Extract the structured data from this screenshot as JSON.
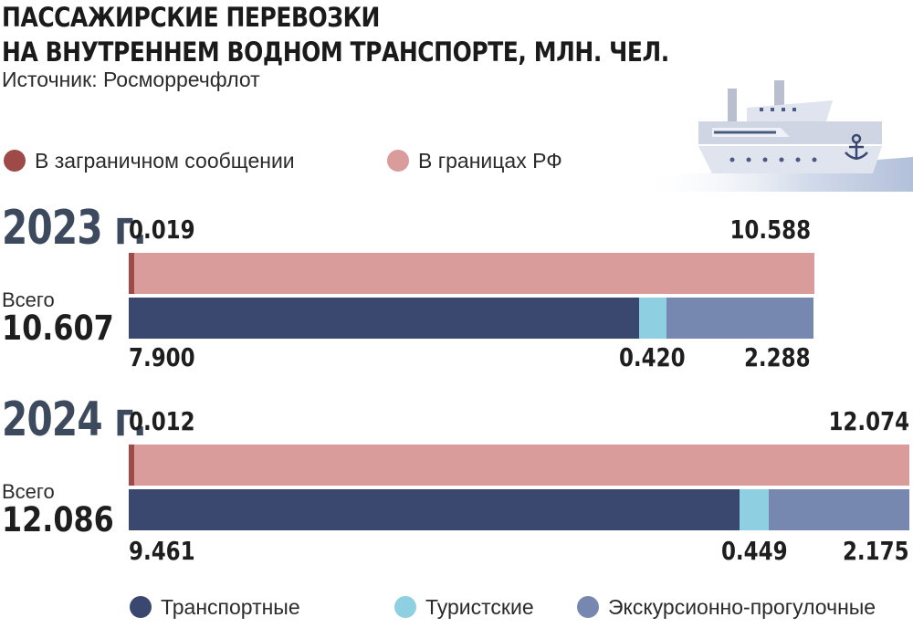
{
  "header": {
    "title_line1": "ПАССАЖИРСКИЕ ПЕРЕВОЗКИ",
    "title_line2": "НА ВНУТРЕННЕМ ВОДНОМ ТРАНСПОРТЕ, МЛН. ЧЕЛ.",
    "source": "Источник: Росморречфлот"
  },
  "colors": {
    "international": "#9e4a48",
    "domestic": "#d99c9b",
    "transport": "#3a4870",
    "tourist": "#8ed0e2",
    "excursion": "#7788b0"
  },
  "legend_top": {
    "international": "В заграничном сообщении",
    "domestic": "В границах РФ"
  },
  "legend_bottom": {
    "transport": "Транспортные",
    "tourist": "Туристские",
    "excursion": "Экскурсионно-прогулочные"
  },
  "chart_data": {
    "type": "bar",
    "orientation": "horizontal-stacked",
    "title": "ПАССАЖИРСКИЕ ПЕРЕВОЗКИ НА ВНУТРЕННЕМ ВОДНОМ ТРАНСПОРТЕ, МЛН. ЧЕЛ.",
    "years": [
      {
        "year_label": "2023 г.",
        "total_label": "Всего",
        "total": "10.607",
        "geography": {
          "international": {
            "value": 0.019,
            "label": "0.019"
          },
          "domestic": {
            "value": 10.588,
            "label": "10.588"
          }
        },
        "types": {
          "transport": {
            "value": 7.9,
            "label": "7.900"
          },
          "tourist": {
            "value": 0.42,
            "label": "0.420"
          },
          "excursion": {
            "value": 2.288,
            "label": "2.288"
          }
        }
      },
      {
        "year_label": "2024 г.",
        "total_label": "Всего",
        "total": "12.086",
        "geography": {
          "international": {
            "value": 0.012,
            "label": "0.012"
          },
          "domestic": {
            "value": 12.074,
            "label": "12.074"
          }
        },
        "types": {
          "transport": {
            "value": 9.461,
            "label": "9.461"
          },
          "tourist": {
            "value": 0.449,
            "label": "0.449"
          },
          "excursion": {
            "value": 2.175,
            "label": "2.175"
          }
        }
      }
    ]
  }
}
